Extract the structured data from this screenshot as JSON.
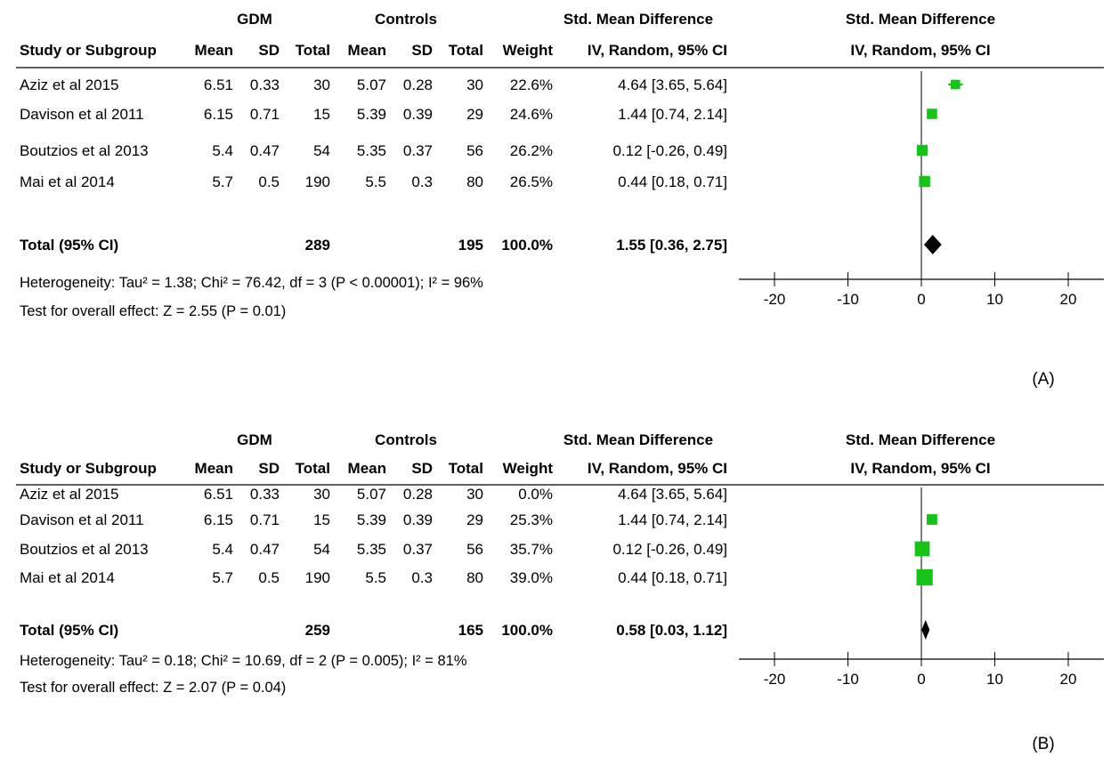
{
  "chart_data": [
    {
      "type": "forest",
      "panel_label": "(A)",
      "group_headers": {
        "gdm": "GDM",
        "controls": "Controls",
        "smd_table": "Std. Mean Difference",
        "smd_plot": "Std. Mean Difference"
      },
      "columns": [
        "Study or Subgroup",
        "Mean",
        "SD",
        "Total",
        "Mean",
        "SD",
        "Total",
        "Weight",
        "IV, Random, 95% CI"
      ],
      "plot_column_header": "IV, Random, 95% CI",
      "studies": [
        {
          "cells": [
            "Aziz et al 2015",
            "6.51",
            "0.33",
            "30",
            "5.07",
            "0.28",
            "30",
            "22.6%",
            "4.64 [3.65, 5.64]"
          ],
          "smd": 4.64,
          "ci": [
            3.65,
            5.64
          ],
          "weight": 22.6
        },
        {
          "cells": [
            "Davison et al 2011",
            "6.15",
            "0.71",
            "15",
            "5.39",
            "0.39",
            "29",
            "24.6%",
            "1.44 [0.74, 2.14]"
          ],
          "smd": 1.44,
          "ci": [
            0.74,
            2.14
          ],
          "weight": 24.6
        },
        {
          "cells": [
            "Boutzios et al 2013",
            "5.4",
            "0.47",
            "54",
            "5.35",
            "0.37",
            "56",
            "26.2%",
            "0.12 [-0.26, 0.49]"
          ],
          "smd": 0.12,
          "ci": [
            -0.26,
            0.49
          ],
          "weight": 26.2
        },
        {
          "cells": [
            "Mai et al 2014",
            "5.7",
            "0.5",
            "190",
            "5.5",
            "0.3",
            "80",
            "26.5%",
            "0.44 [0.18, 0.71]"
          ],
          "smd": 0.44,
          "ci": [
            0.18,
            0.71
          ],
          "weight": 26.5
        }
      ],
      "total": {
        "label": "Total (95% CI)",
        "gdm_total": "289",
        "controls_total": "195",
        "weight": "100.0%",
        "ci_text": "1.55 [0.36, 2.75]",
        "smd": 1.55,
        "ci": [
          0.36,
          2.75
        ]
      },
      "heterogeneity": "Heterogeneity: Tau² = 1.38; Chi² = 76.42, df = 3 (P < 0.00001); I² = 96%",
      "overall_effect": "Test for overall effect: Z = 2.55 (P = 0.01)",
      "xlim": [
        -20,
        20
      ],
      "xticks": [
        -20,
        -10,
        0,
        10,
        20
      ]
    },
    {
      "type": "forest",
      "panel_label": "(B)",
      "group_headers": {
        "gdm": "GDM",
        "controls": "Controls",
        "smd_table": "Std. Mean Difference",
        "smd_plot": "Std. Mean Difference"
      },
      "columns": [
        "Study or Subgroup",
        "Mean",
        "SD",
        "Total",
        "Mean",
        "SD",
        "Total",
        "Weight",
        "IV, Random, 95% CI"
      ],
      "plot_column_header": "IV, Random, 95% CI",
      "studies": [
        {
          "cells": [
            "Aziz et al 2015",
            "6.51",
            "0.33",
            "30",
            "5.07",
            "0.28",
            "30",
            "0.0%",
            "4.64 [3.65, 5.64]"
          ],
          "smd": 4.64,
          "ci": [
            3.65,
            5.64
          ],
          "weight": 0,
          "show_marker": false
        },
        {
          "cells": [
            "Davison et al 2011",
            "6.15",
            "0.71",
            "15",
            "5.39",
            "0.39",
            "29",
            "25.3%",
            "1.44 [0.74, 2.14]"
          ],
          "smd": 1.44,
          "ci": [
            0.74,
            2.14
          ],
          "weight": 25.3
        },
        {
          "cells": [
            "Boutzios et al 2013",
            "5.4",
            "0.47",
            "54",
            "5.35",
            "0.37",
            "56",
            "35.7%",
            "0.12 [-0.26, 0.49]"
          ],
          "smd": 0.12,
          "ci": [
            -0.26,
            0.49
          ],
          "weight": 35.7
        },
        {
          "cells": [
            "Mai et al 2014",
            "5.7",
            "0.5",
            "190",
            "5.5",
            "0.3",
            "80",
            "39.0%",
            "0.44 [0.18, 0.71]"
          ],
          "smd": 0.44,
          "ci": [
            0.18,
            0.71
          ],
          "weight": 39.0
        }
      ],
      "total": {
        "label": "Total (95% CI)",
        "gdm_total": "259",
        "controls_total": "165",
        "weight": "100.0%",
        "ci_text": "0.58 [0.03, 1.12]",
        "smd": 0.58,
        "ci": [
          0.03,
          1.12
        ]
      },
      "heterogeneity": "Heterogeneity: Tau² = 0.18; Chi² = 10.69, df = 2 (P = 0.005); I² = 81%",
      "overall_effect": "Test for overall effect: Z = 2.07 (P = 0.04)",
      "xlim": [
        -20,
        20
      ],
      "xticks": [
        -20,
        -10,
        0,
        10,
        20
      ]
    }
  ],
  "colors": {
    "study_marker": "#19c219",
    "diamond": "#000000",
    "line": "#000000"
  }
}
